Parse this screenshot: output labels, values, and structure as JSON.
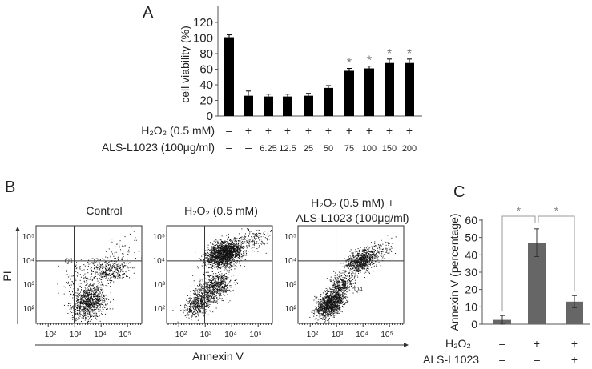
{
  "chart_data": [
    {
      "panel": "A",
      "type": "bar",
      "ylabel": "cell viability (%)",
      "ylim": [
        0,
        120
      ],
      "yticks": [
        "0",
        "20",
        "40",
        "60",
        "80",
        "100",
        "120"
      ],
      "values": [
        101,
        26,
        25,
        25,
        26,
        36,
        58,
        61,
        68,
        68
      ],
      "errors": [
        3,
        6,
        3,
        3,
        3,
        3,
        3,
        3,
        5,
        5
      ],
      "significance": [
        "",
        "",
        "",
        "",
        "",
        "",
        "*",
        "*",
        "*",
        "*"
      ],
      "rows": [
        {
          "label": "H₂O₂ (0.5 mM)",
          "cells": [
            "–",
            "+",
            "+",
            "+",
            "+",
            "+",
            "+",
            "+",
            "+",
            "+"
          ]
        },
        {
          "label": "ALS-L1023 (100μg/ml)",
          "cells": [
            "–",
            "–",
            "6.25",
            "12.5",
            "25",
            "50",
            "75",
            "100",
            "150",
            "200"
          ]
        }
      ],
      "bar_color": "#000000"
    },
    {
      "panel": "B",
      "type": "scatter",
      "xlabel": "Annexin V",
      "ylabel": "PI",
      "xticks": [
        "10²",
        "10³",
        "10⁴",
        "10⁵"
      ],
      "yticks": [
        "10²",
        "10³",
        "10⁴",
        "10⁵"
      ],
      "scale": "log",
      "plots": [
        {
          "title": [
            "Control"
          ],
          "quadrants": [
            "Q1",
            "Q2",
            "Q4"
          ]
        },
        {
          "title": [
            "H₂O₂ (0.5 mM)"
          ],
          "quadrants": [
            "Q2",
            "Q3",
            "Q4"
          ]
        },
        {
          "title": [
            "H₂O₂ (0.5 mM) +",
            "ALS-L1023 (100μg/ml)"
          ],
          "quadrants": [
            "Q2",
            "Q4"
          ]
        }
      ]
    },
    {
      "panel": "C",
      "type": "bar",
      "ylabel": "Annexin V (percentage)",
      "ylim": [
        0,
        60
      ],
      "yticks": [
        "0",
        "10",
        "20",
        "30",
        "40",
        "50",
        "60"
      ],
      "values": [
        2.5,
        47,
        13
      ],
      "errors": [
        2.5,
        8,
        3.5
      ],
      "significance": [
        {
          "between": [
            0,
            1
          ],
          "label": "*"
        },
        {
          "between": [
            1,
            2
          ],
          "label": "*"
        }
      ],
      "rows": [
        {
          "label": "H₂O₂",
          "cells": [
            "–",
            "+",
            "+"
          ]
        },
        {
          "label": "ALS-L1023",
          "cells": [
            "–",
            "–",
            "+"
          ]
        }
      ],
      "bar_color": "#666666"
    }
  ]
}
